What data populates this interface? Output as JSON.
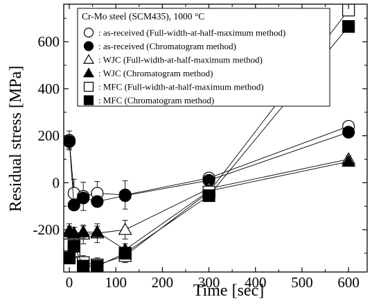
{
  "chart_data": {
    "type": "scatter",
    "title": "",
    "xlabel": "Time [sec]",
    "ylabel": "Residual stress [MPa]",
    "xlim": [
      -12,
      640
    ],
    "ylim": [
      -380,
      760
    ],
    "xticks": [
      0,
      100,
      200,
      300,
      400,
      500,
      600
    ],
    "yticks": [
      -200,
      0,
      200,
      400,
      600
    ],
    "xtick_labels": [
      "0",
      "100",
      "200",
      "300",
      "400",
      "500",
      "600"
    ],
    "ytick_labels": [
      "-200",
      "0",
      "200",
      "400",
      "600"
    ],
    "grid": false,
    "legend_position": "top-left",
    "legend_title": "Cr-Mo steel (SCM435), 1000 °C",
    "series": [
      {
        "name": ": as-received (Full-width-at-half-maximum method)",
        "marker": "circle-open",
        "x": [
          0,
          10,
          30,
          60,
          120,
          300,
          600
        ],
        "y": [
          180,
          -45,
          -58,
          -45,
          -52,
          20,
          240
        ],
        "err": [
          40,
          60,
          60,
          50,
          60,
          15,
          15
        ]
      },
      {
        "name": ": as-received (Chromatogram method)",
        "marker": "circle-filled",
        "x": [
          0,
          10,
          30,
          60,
          120,
          300,
          600
        ],
        "y": [
          175,
          -95,
          -65,
          -80,
          -55,
          10,
          215
        ],
        "err": [
          30,
          20,
          20,
          20,
          20,
          15,
          15
        ]
      },
      {
        "name": ": WJC (Full-width-at-half-maximum method)",
        "marker": "triangle-open",
        "x": [
          0,
          10,
          30,
          60,
          120,
          300,
          600
        ],
        "y": [
          -205,
          -230,
          -220,
          -215,
          -200,
          -25,
          100
        ],
        "err": [
          30,
          40,
          40,
          40,
          40,
          15,
          15
        ]
      },
      {
        "name": ": WJC (Chromatogram method)",
        "marker": "triangle-filled",
        "x": [
          0,
          10,
          30,
          60,
          120,
          300,
          600
        ],
        "y": [
          -210,
          -215,
          -210,
          -210,
          -285,
          -35,
          90
        ],
        "err": [
          25,
          25,
          25,
          25,
          25,
          15,
          15
        ]
      },
      {
        "name": ": MFC (Full-width-at-half-maximum method)",
        "marker": "square-open",
        "x": [
          0,
          10,
          30,
          60,
          120,
          300,
          600
        ],
        "y": [
          -265,
          -290,
          -340,
          -350,
          -310,
          -40,
          735
        ],
        "err": [
          30,
          30,
          30,
          30,
          30,
          15,
          20
        ]
      },
      {
        "name": ": MFC (Chromatogram method)",
        "marker": "square-filled",
        "x": [
          0,
          10,
          30,
          60,
          120,
          300,
          600
        ],
        "y": [
          -320,
          -270,
          -355,
          -355,
          -300,
          -55,
          665
        ],
        "err": [
          25,
          25,
          25,
          25,
          25,
          15,
          20
        ]
      }
    ]
  }
}
